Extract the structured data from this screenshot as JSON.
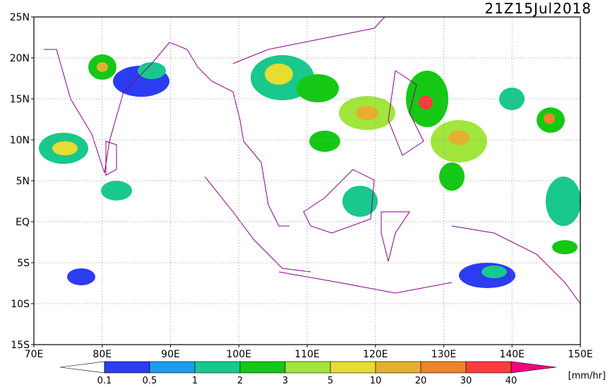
{
  "title": "21Z15Jul2018",
  "lat_labels": [
    "25N",
    "20N",
    "15N",
    "10N",
    "5N",
    "EQ",
    "5S",
    "10S",
    "15S"
  ],
  "lon_labels": [
    "70E",
    "80E",
    "90E",
    "100E",
    "110E",
    "120E",
    "130E",
    "140E",
    "150E"
  ],
  "colorbar": {
    "labels": [
      "0.1",
      "0.5",
      "1",
      "2",
      "3",
      "5",
      "10",
      "20",
      "30",
      "40"
    ],
    "colors": [
      "#ffffff",
      "#2c3cf0",
      "#1e9bf0",
      "#18c88c",
      "#14c814",
      "#a0e63c",
      "#e6dc32",
      "#e6af2d",
      "#f08228",
      "#fa3c3c",
      "#f00082"
    ],
    "unit": "[mm/hr]"
  }
}
